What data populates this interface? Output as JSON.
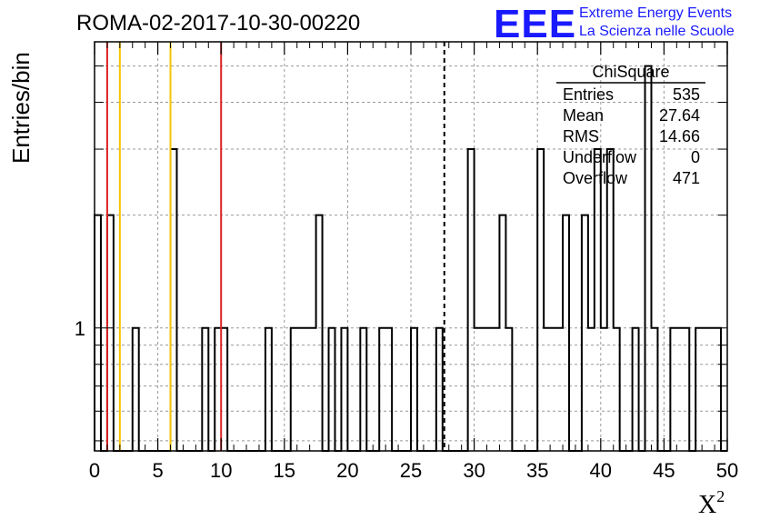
{
  "logo": {
    "letters": "EEE",
    "line1": "Extreme Energy Events",
    "line2": "La Scienza nelle Scuole",
    "color": "#1a1aff"
  },
  "chart_data": {
    "type": "histogram",
    "title": "ROMA-02-2017-10-30-00220",
    "xlabel": "X",
    "xlabel_sup": "2",
    "ylabel": "Entries/bin",
    "xlim": [
      0,
      50
    ],
    "ylim": [
      0.47,
      5.8
    ],
    "yscale": "log",
    "bin_width": 0.5,
    "grid": true,
    "x_ticks": [
      "0",
      "5",
      "10",
      "15",
      "20",
      "25",
      "30",
      "35",
      "40",
      "45",
      "50"
    ],
    "y_ticks": [
      "1"
    ],
    "bins": [
      {
        "x": 0.0,
        "count": 2
      },
      {
        "x": 1.0,
        "count": 2
      },
      {
        "x": 3.0,
        "count": 1
      },
      {
        "x": 6.0,
        "count": 3
      },
      {
        "x": 8.5,
        "count": 1
      },
      {
        "x": 9.5,
        "count": 1
      },
      {
        "x": 10.0,
        "count": 1
      },
      {
        "x": 13.5,
        "count": 1
      },
      {
        "x": 15.5,
        "count": 1
      },
      {
        "x": 16.0,
        "count": 1
      },
      {
        "x": 16.5,
        "count": 1
      },
      {
        "x": 17.0,
        "count": 1
      },
      {
        "x": 17.5,
        "count": 2
      },
      {
        "x": 18.5,
        "count": 1
      },
      {
        "x": 19.5,
        "count": 1
      },
      {
        "x": 21.0,
        "count": 1
      },
      {
        "x": 22.5,
        "count": 1
      },
      {
        "x": 23.0,
        "count": 1
      },
      {
        "x": 25.0,
        "count": 1
      },
      {
        "x": 27.0,
        "count": 1
      },
      {
        "x": 29.5,
        "count": 3
      },
      {
        "x": 30.0,
        "count": 1
      },
      {
        "x": 30.5,
        "count": 1
      },
      {
        "x": 31.0,
        "count": 1
      },
      {
        "x": 31.5,
        "count": 1
      },
      {
        "x": 32.0,
        "count": 2
      },
      {
        "x": 32.5,
        "count": 1
      },
      {
        "x": 35.0,
        "count": 3
      },
      {
        "x": 35.5,
        "count": 1
      },
      {
        "x": 36.0,
        "count": 1
      },
      {
        "x": 36.5,
        "count": 1
      },
      {
        "x": 37.0,
        "count": 2
      },
      {
        "x": 38.5,
        "count": 2
      },
      {
        "x": 39.0,
        "count": 1
      },
      {
        "x": 39.5,
        "count": 3
      },
      {
        "x": 40.0,
        "count": 1
      },
      {
        "x": 40.5,
        "count": 3
      },
      {
        "x": 41.0,
        "count": 1
      },
      {
        "x": 42.5,
        "count": 1
      },
      {
        "x": 43.5,
        "count": 5
      },
      {
        "x": 44.0,
        "count": 1
      },
      {
        "x": 45.5,
        "count": 1
      },
      {
        "x": 46.0,
        "count": 1
      },
      {
        "x": 46.5,
        "count": 1
      },
      {
        "x": 47.5,
        "count": 1
      },
      {
        "x": 48.0,
        "count": 1
      },
      {
        "x": 48.5,
        "count": 1
      },
      {
        "x": 49.0,
        "count": 1
      }
    ],
    "vertical_lines": [
      {
        "x": 1,
        "color": "#dd2222",
        "style": "solid"
      },
      {
        "x": 2,
        "color": "#f5c400",
        "style": "solid"
      },
      {
        "x": 6,
        "color": "#f5c400",
        "style": "solid"
      },
      {
        "x": 10,
        "color": "#dd2222",
        "style": "solid"
      },
      {
        "x": 27.64,
        "color": "#000000",
        "style": "dashed"
      }
    ],
    "stats": {
      "title": "ChiSquare",
      "rows": [
        {
          "label": "Entries",
          "value": "535"
        },
        {
          "label": "Mean",
          "value": "27.64"
        },
        {
          "label": "RMS",
          "value": "14.66"
        },
        {
          "label": "Underflow",
          "value": "0"
        },
        {
          "label": "Overflow",
          "value": "471"
        }
      ]
    }
  }
}
